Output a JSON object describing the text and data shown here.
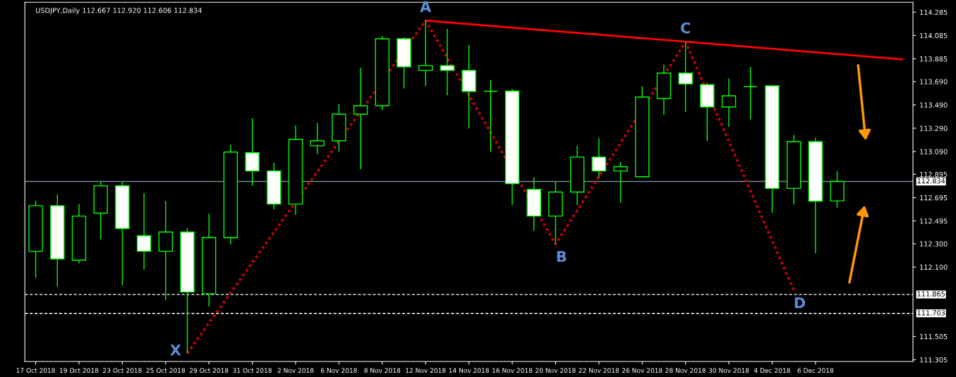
{
  "chart_data": {
    "type": "candlestick",
    "title": "USDJPY,Daily 112.667 112.920 112.606 112.834",
    "categories": [
      "17 Oct 2018",
      null,
      "19 Oct 2018",
      null,
      "23 Oct 2018",
      null,
      "25 Oct 2018",
      null,
      "29 Oct 2018",
      null,
      "31 Oct 2018",
      null,
      "2 Nov 2018",
      null,
      "6 Nov 2018",
      null,
      "8 Nov 2018",
      null,
      "12 Nov 2018",
      null,
      "14 Nov 2018",
      null,
      "16 Nov 2018",
      null,
      "20 Nov 2018",
      null,
      "22 Nov 2018",
      null,
      "26 Nov 2018",
      null,
      "28 Nov 2018",
      null,
      "30 Nov 2018",
      null,
      "4 Dec 2018",
      null,
      "6 Dec 2018",
      null,
      null,
      null,
      null
    ],
    "color": "#00ff00",
    "ohlc": [
      [
        112.235,
        112.667,
        112.009,
        112.626
      ],
      [
        112.626,
        112.722,
        111.933,
        112.169
      ],
      [
        112.159,
        112.64,
        112.132,
        112.537
      ],
      [
        112.562,
        112.831,
        112.338,
        112.797
      ],
      [
        112.797,
        112.831,
        111.943,
        112.431
      ],
      [
        112.369,
        112.733,
        112.077,
        112.235
      ],
      [
        112.235,
        112.667,
        111.814,
        112.4
      ],
      [
        112.4,
        112.435,
        111.361,
        111.886
      ],
      [
        111.871,
        112.558,
        111.762,
        112.352
      ],
      [
        112.352,
        113.148,
        112.293,
        113.086
      ],
      [
        113.08,
        113.376,
        112.797,
        112.924
      ],
      [
        112.924,
        112.996,
        112.595,
        112.64
      ],
      [
        112.64,
        113.317,
        112.548,
        113.195
      ],
      [
        113.14,
        113.335,
        113.068,
        113.183
      ],
      [
        113.183,
        113.498,
        113.089,
        113.411
      ],
      [
        113.411,
        113.81,
        112.938,
        113.483
      ],
      [
        113.483,
        114.082,
        113.444,
        114.057
      ],
      [
        114.057,
        114.069,
        113.631,
        113.816
      ],
      [
        113.786,
        114.213,
        113.652,
        113.827
      ],
      [
        113.827,
        114.141,
        113.572,
        113.786
      ],
      [
        113.786,
        114.004,
        113.288,
        113.605
      ],
      [
        113.607,
        113.701,
        113.089,
        113.607
      ],
      [
        113.609,
        113.627,
        112.632,
        112.815
      ],
      [
        112.766,
        112.868,
        112.41,
        112.537
      ],
      [
        112.537,
        112.831,
        112.297,
        112.743
      ],
      [
        112.743,
        113.14,
        112.632,
        113.043
      ],
      [
        113.043,
        113.206,
        112.868,
        112.924
      ],
      [
        112.924,
        113.002,
        112.651,
        112.961
      ],
      [
        112.875,
        113.65,
        112.868,
        113.557
      ],
      [
        113.545,
        113.835,
        113.403,
        113.763
      ],
      [
        113.763,
        114.03,
        113.428,
        113.67
      ],
      [
        113.664,
        113.679,
        113.181,
        113.473
      ],
      [
        113.473,
        113.716,
        113.3,
        113.568
      ],
      [
        113.648,
        113.816,
        113.366,
        113.648
      ],
      [
        113.654,
        113.654,
        112.564,
        112.774
      ],
      [
        112.774,
        113.232,
        112.636,
        113.175
      ],
      [
        113.175,
        113.208,
        112.219,
        112.665
      ],
      [
        112.667,
        112.92,
        112.606,
        112.834
      ],
      null,
      null,
      null
    ],
    "series": [
      {
        "type": "line",
        "color": "#ff0000",
        "line_style": "solid",
        "values": [
          null,
          null,
          null,
          null,
          null,
          null,
          null,
          null,
          null,
          null,
          null,
          null,
          null,
          null,
          null,
          null,
          null,
          null,
          114.213,
          null,
          null,
          null,
          null,
          null,
          null,
          null,
          null,
          null,
          null,
          null,
          null,
          null,
          null,
          null,
          null,
          null,
          null,
          null,
          null,
          null,
          113.881
        ]
      },
      {
        "type": "line",
        "color": "#cc0000",
        "line_style": "dotted",
        "values": [
          null,
          null,
          null,
          null,
          null,
          null,
          null,
          111.361,
          null,
          null,
          null,
          null,
          null,
          null,
          null,
          null,
          null,
          null,
          114.213,
          null,
          null,
          null,
          null,
          null,
          112.297,
          null,
          null,
          null,
          null,
          null,
          114.03,
          null,
          null,
          null,
          null,
          111.9,
          null,
          null,
          null,
          null,
          null
        ]
      }
    ],
    "annotations": [
      "X",
      "A",
      "B",
      "C",
      "D"
    ],
    "ref_lines": [
      {
        "axis": "y",
        "value": 112.834,
        "label": "112.834",
        "color": "#778899",
        "line_style": "solid"
      },
      {
        "axis": "y",
        "value": 111.865,
        "label": "111.865",
        "color": "#ffffff",
        "line_style": "dashed"
      },
      {
        "axis": "y",
        "value": 111.703,
        "label": "111.703",
        "color": "#ffffff",
        "line_style": "dashed"
      }
    ],
    "ylim": [
      111.29,
      114.37
    ],
    "yticks": [
      {
        "value": 111.305,
        "label": "111.305"
      },
      {
        "value": 111.505,
        "label": "111.505"
      },
      {
        "value": 112.1,
        "label": "112.100"
      },
      {
        "value": 112.3,
        "label": "112.300"
      },
      {
        "value": 112.495,
        "label": "112.495"
      },
      {
        "value": 112.695,
        "label": "112.695"
      },
      {
        "value": 112.895,
        "label": "112.895"
      },
      {
        "value": 113.09,
        "label": "113.090"
      },
      {
        "value": 113.29,
        "label": "113.290"
      },
      {
        "value": 113.49,
        "label": "113.490"
      },
      {
        "value": 113.69,
        "label": "113.690"
      },
      {
        "value": 113.885,
        "label": "113.885"
      },
      {
        "value": 114.085,
        "label": "114.085"
      },
      {
        "value": 114.285,
        "label": "114.285"
      }
    ],
    "grid": false,
    "legend": false
  }
}
